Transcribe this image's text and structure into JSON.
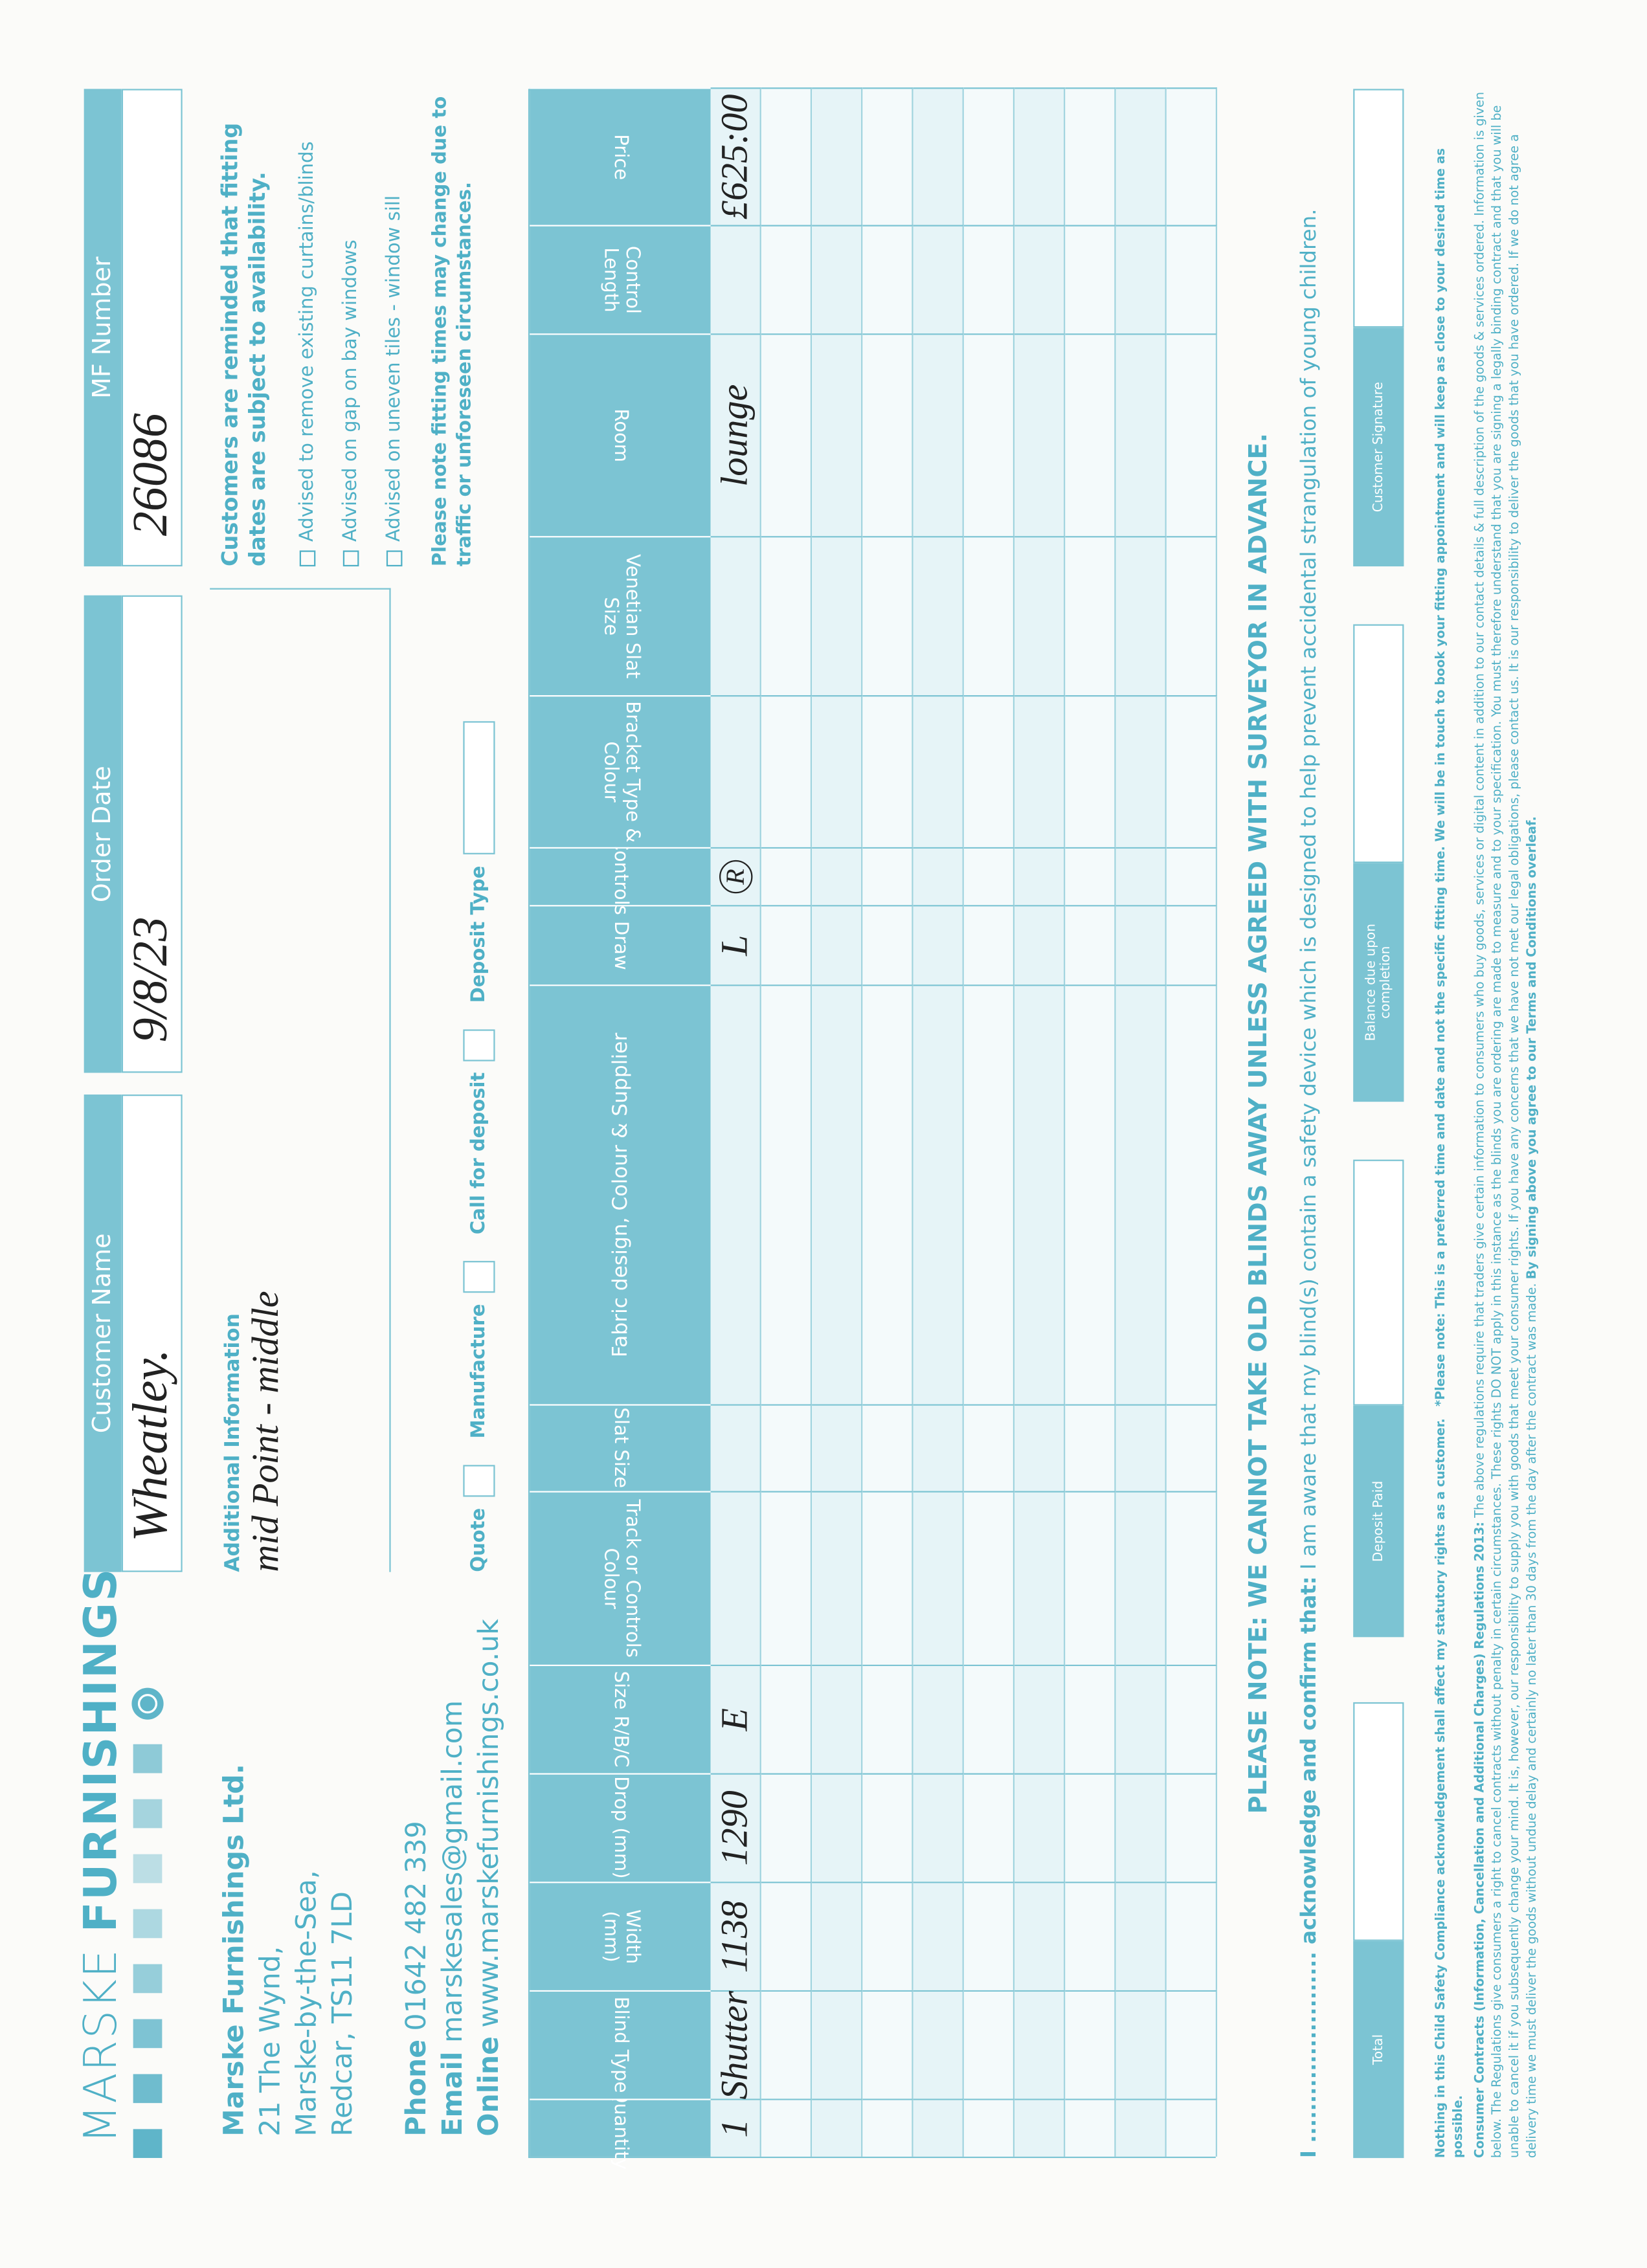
{
  "brand": {
    "name_light": "MARSKE",
    "name_bold": "FURNISHINGS"
  },
  "company": {
    "name": "Marske Furnishings Ltd.",
    "address": [
      "21 The Wynd,",
      "Marske-by-the-Sea,",
      "Redcar, TS11 7LD"
    ],
    "phone_label": "Phone",
    "phone": "01642 482 339",
    "email_label": "Email",
    "email": "marskesales@gmail.com",
    "online_label": "Online",
    "online": "www.marskefurnishings.co.uk"
  },
  "fields": {
    "customer_name": {
      "label": "Customer Name",
      "value": "Wheatley."
    },
    "order_date": {
      "label": "Order Date",
      "value": "9/8/23"
    },
    "mf_number": {
      "label": "MF Number",
      "value": "26086"
    }
  },
  "additional": {
    "label": "Additional Information",
    "value": "mid Point - middle"
  },
  "options": [
    "Quote",
    "Manufacture",
    "Call for deposit",
    "Deposit Type"
  ],
  "notes": {
    "reminder": "Customers are reminded that fitting dates are subject to availability.",
    "advised": [
      "Advised to remove existing curtains/blinds",
      "Advised on gap on bay windows",
      "Advised on uneven tiles - window sill"
    ],
    "fitting": "Please note fitting times may change due to traffic or unforeseen circumstances."
  },
  "table": {
    "headers": [
      "Quantity",
      "Blind Type",
      "Width (mm)",
      "Drop (mm)",
      "Size R/B/C",
      "Track or Controls Colour",
      "Slat Size",
      "Fabric design, Colour & Supplier",
      "Draw",
      "Controls",
      "Bracket Type & Colour",
      "Venetian Slat Size",
      "Room",
      "Control Length",
      "Price"
    ],
    "rows": [
      [
        "1",
        "Shutter",
        "1138",
        "1290",
        "E",
        null,
        null,
        null,
        "L",
        "R",
        null,
        null,
        "lounge",
        null,
        "£625:00"
      ]
    ]
  },
  "footer": {
    "warning": "PLEASE NOTE: WE CANNOT TAKE OLD BLINDS AWAY UNLESS AGREED WITH SURVEYOR IN ADVANCE.",
    "acknowledge_lead": "I ........................ acknowledge and confirm that:",
    "acknowledge": "I am aware that my blind(s) contain a safety device which is designed to help prevent accidental strangulation of young children.",
    "boxes": [
      "Total",
      "Deposit Paid",
      "Balance due upon completion",
      "Customer Signature"
    ],
    "statutory": "Nothing in this Child Safety Compliance acknowledgement shall affect my statutory rights as a customer.",
    "preferred": "*Please note: This is a preferred time and date and not the specific fitting time. We will be in touch to book your fitting appointment and will keep as close to your desired time as possible.",
    "regulations_title": "Consumer Contracts (Information, Cancellation and Additional Charges) Regulations 2013:",
    "regulations": "The above regulations require that traders give certain information to consumers who buy goods, services or digital content in addition to our contact details & full description of the goods & services ordered. Information is given below. The Regulations give consumers a right to cancel contracts without penalty in certain circumstances. These rights DO NOT apply in this instance as the blinds you are ordering are made to measure and to your specification. You must therefore understand that you are signing a legally binding contract and that you will be unable to cancel it if you subsequently change your mind. It is, however, our responsibility to supply you with goods that meet your consumer rights. If you have any concerns that we have not met our legal obligations, please contact us. It is our responsibility to deliver the goods that you have ordered. If we do not agree a delivery time we must deliver the goods without undue delay and certainly no later than 30 days from the day after the contract was made.",
    "signing": "By signing above you agree to our Terms and Conditions overleaf."
  }
}
